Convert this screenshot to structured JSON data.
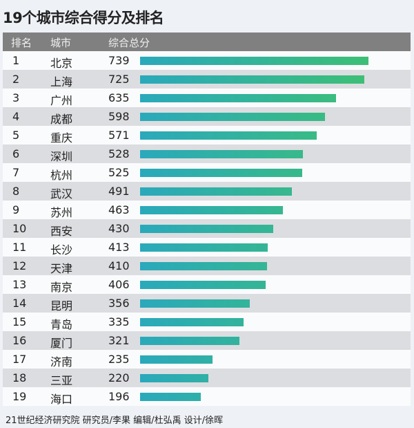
{
  "chart_data": {
    "type": "bar",
    "title": "19个城市综合得分及排名",
    "columns": [
      "排名",
      "城市",
      "综合总分"
    ],
    "ranks": [
      1,
      2,
      3,
      4,
      5,
      6,
      7,
      8,
      9,
      10,
      11,
      12,
      13,
      14,
      15,
      16,
      17,
      18,
      19
    ],
    "categories": [
      "北京",
      "上海",
      "广州",
      "成都",
      "重庆",
      "深圳",
      "杭州",
      "武汉",
      "苏州",
      "西安",
      "长沙",
      "天津",
      "南京",
      "昆明",
      "青岛",
      "厦门",
      "济南",
      "三亚",
      "海口"
    ],
    "values": [
      739,
      725,
      635,
      598,
      571,
      528,
      525,
      491,
      463,
      430,
      413,
      410,
      406,
      356,
      335,
      321,
      235,
      220,
      196
    ],
    "xlim": [
      0,
      739
    ],
    "grid": false,
    "colors": {
      "bar_start": "#2aa9bb",
      "bar_end": "#3dbf76",
      "header_bg": "#808080"
    }
  },
  "footer": "21世纪经济研究院 研究员/李果  编辑/杜弘禹  设计/徐晖"
}
